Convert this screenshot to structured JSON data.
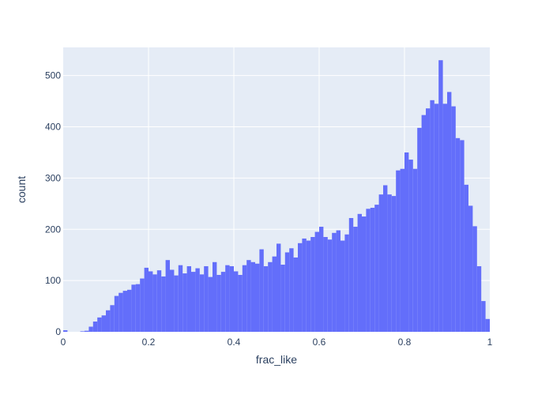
{
  "chart_data": {
    "type": "bar",
    "subtype": "histogram",
    "title": "",
    "xlabel": "frac_like",
    "ylabel": "count",
    "xlim": [
      0,
      1
    ],
    "ylim": [
      0,
      555
    ],
    "bin_width": 0.01,
    "x_ticks": [
      {
        "value": 0,
        "label": "0"
      },
      {
        "value": 0.2,
        "label": "0.2"
      },
      {
        "value": 0.4,
        "label": "0.4"
      },
      {
        "value": 0.6,
        "label": "0.6"
      },
      {
        "value": 0.8,
        "label": "0.8"
      },
      {
        "value": 1,
        "label": "1"
      }
    ],
    "y_ticks": [
      {
        "value": 0,
        "label": "0"
      },
      {
        "value": 100,
        "label": "100"
      },
      {
        "value": 200,
        "label": "200"
      },
      {
        "value": 300,
        "label": "300"
      },
      {
        "value": 400,
        "label": "400"
      },
      {
        "value": 500,
        "label": "500"
      }
    ],
    "grid": true,
    "bar_color": "#636efa",
    "plot_background": "#e5ecf6",
    "gridline_color": "#ffffff",
    "text_color": "#2a3f5f",
    "bin_starts": [
      0,
      0.01,
      0.02,
      0.03,
      0.04,
      0.05,
      0.06,
      0.07,
      0.08,
      0.09,
      0.1,
      0.11,
      0.12,
      0.13,
      0.14,
      0.15,
      0.16,
      0.17,
      0.18,
      0.19,
      0.2,
      0.21,
      0.22,
      0.23,
      0.24,
      0.25,
      0.26,
      0.27,
      0.28,
      0.29,
      0.3,
      0.31,
      0.32,
      0.33,
      0.34,
      0.35,
      0.36,
      0.37,
      0.38,
      0.39,
      0.4,
      0.41,
      0.42,
      0.43,
      0.44,
      0.45,
      0.46,
      0.47,
      0.48,
      0.49,
      0.5,
      0.51,
      0.52,
      0.53,
      0.54,
      0.55,
      0.56,
      0.57,
      0.58,
      0.59,
      0.6,
      0.61,
      0.62,
      0.63,
      0.64,
      0.65,
      0.66,
      0.67,
      0.68,
      0.69,
      0.7,
      0.71,
      0.72,
      0.73,
      0.74,
      0.75,
      0.76,
      0.77,
      0.78,
      0.79,
      0.8,
      0.81,
      0.82,
      0.83,
      0.84,
      0.85,
      0.86,
      0.87,
      0.88,
      0.89,
      0.9,
      0.91,
      0.92,
      0.93,
      0.94,
      0.95,
      0.96,
      0.97,
      0.98,
      0.99
    ],
    "values": [
      3,
      0,
      0,
      0,
      1,
      2,
      10,
      20,
      28,
      32,
      42,
      52,
      70,
      76,
      80,
      82,
      92,
      93,
      104,
      125,
      118,
      112,
      120,
      108,
      140,
      121,
      110,
      130,
      114,
      128,
      117,
      124,
      112,
      128,
      107,
      136,
      111,
      117,
      130,
      128,
      118,
      111,
      130,
      140,
      136,
      133,
      161,
      128,
      136,
      147,
      172,
      131,
      155,
      163,
      145,
      173,
      182,
      178,
      185,
      195,
      205,
      185,
      180,
      193,
      198,
      178,
      190,
      222,
      205,
      230,
      225,
      240,
      242,
      248,
      268,
      286,
      268,
      265,
      315,
      318,
      350,
      336,
      318,
      398,
      423,
      436,
      452,
      445,
      530,
      445,
      468,
      440,
      378,
      374,
      287,
      246,
      206,
      128,
      60,
      25
    ]
  }
}
